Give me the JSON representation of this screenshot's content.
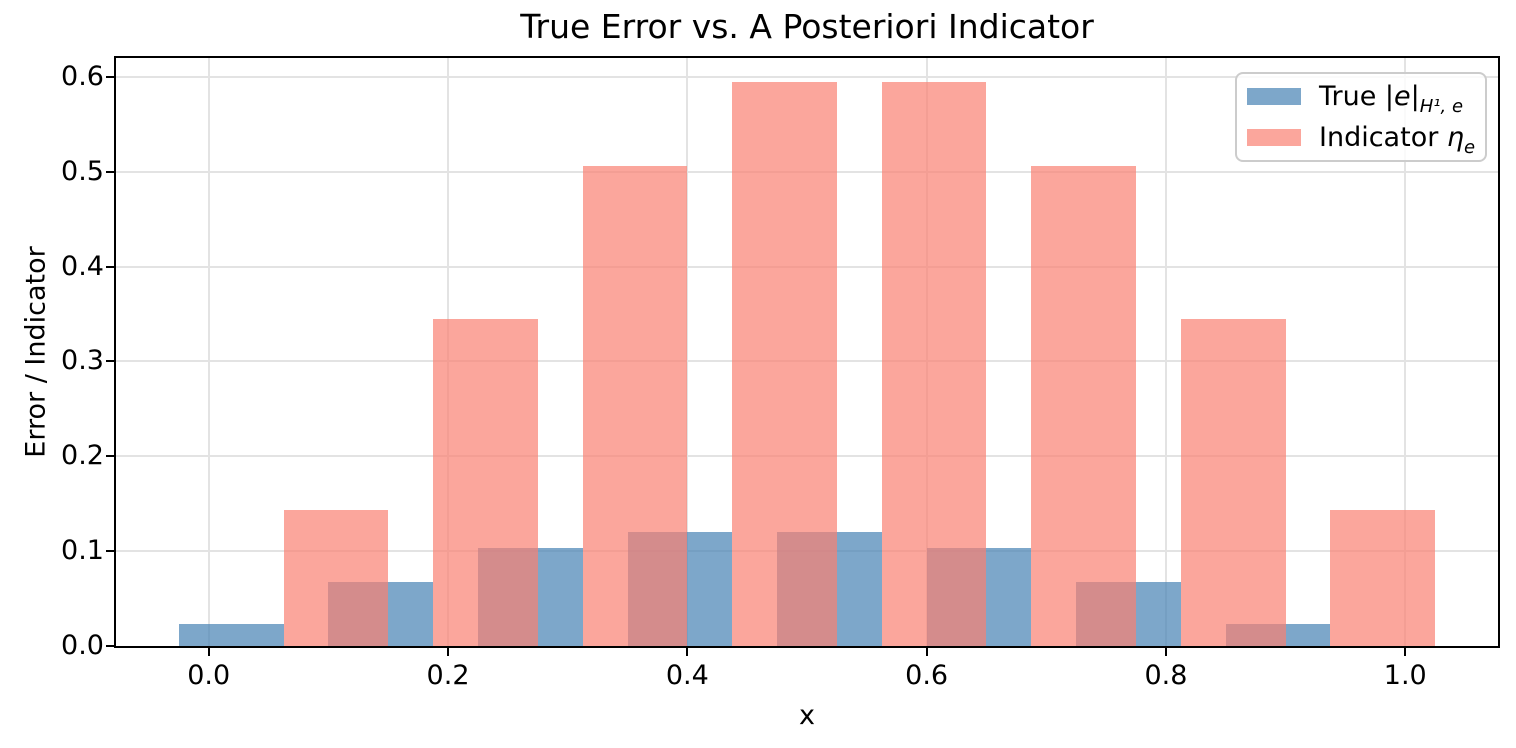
{
  "figure": {
    "background": "#ffffff",
    "text_color": "#000000",
    "grid_color": "#e3e3e3",
    "spine_color": "#000000",
    "legend_border_color": "#cccccc"
  },
  "chart_data": {
    "type": "bar",
    "title": "True Error vs. A Posteriori Indicator",
    "xlabel": "x",
    "ylabel": "Error / Indicator",
    "xlim": [
      -0.0775,
      1.0775
    ],
    "ylim": [
      0,
      0.62
    ],
    "x_ticks": [
      0.0,
      0.2,
      0.4,
      0.6,
      0.8,
      1.0
    ],
    "x_tick_labels": [
      "0.0",
      "0.2",
      "0.4",
      "0.6",
      "0.8",
      "1.0"
    ],
    "y_ticks": [
      0.0,
      0.1,
      0.2,
      0.3,
      0.4,
      0.5,
      0.6
    ],
    "y_tick_labels": [
      "0.0",
      "0.1",
      "0.2",
      "0.3",
      "0.4",
      "0.5",
      "0.6"
    ],
    "grid": true,
    "legend_position": "upper right",
    "element_midpoints": [
      0.0625,
      0.1875,
      0.3125,
      0.4375,
      0.5625,
      0.6875,
      0.8125,
      0.9375
    ],
    "bar_width": 0.0875,
    "series": [
      {
        "name": "True |e|_H1,e",
        "color": "rgba(70,130,180,0.7)",
        "placement": "left_of_midpoint",
        "values": [
          0.023,
          0.068,
          0.103,
          0.12,
          0.12,
          0.103,
          0.068,
          0.023
        ]
      },
      {
        "name": "Indicator eta_e",
        "color": "rgba(250,128,114,0.7)",
        "placement": "right_of_midpoint",
        "values": [
          0.143,
          0.345,
          0.506,
          0.595,
          0.595,
          0.506,
          0.345,
          0.143
        ]
      }
    ]
  },
  "legend": {
    "items": [
      {
        "pre": "True |",
        "var": "e",
        "post": "|",
        "sub": "H¹, e",
        "color": "rgba(70,130,180,0.7)"
      },
      {
        "pre": "Indicator ",
        "var": "η",
        "post": "",
        "sub": "e",
        "color": "rgba(250,128,114,0.7)"
      }
    ]
  }
}
